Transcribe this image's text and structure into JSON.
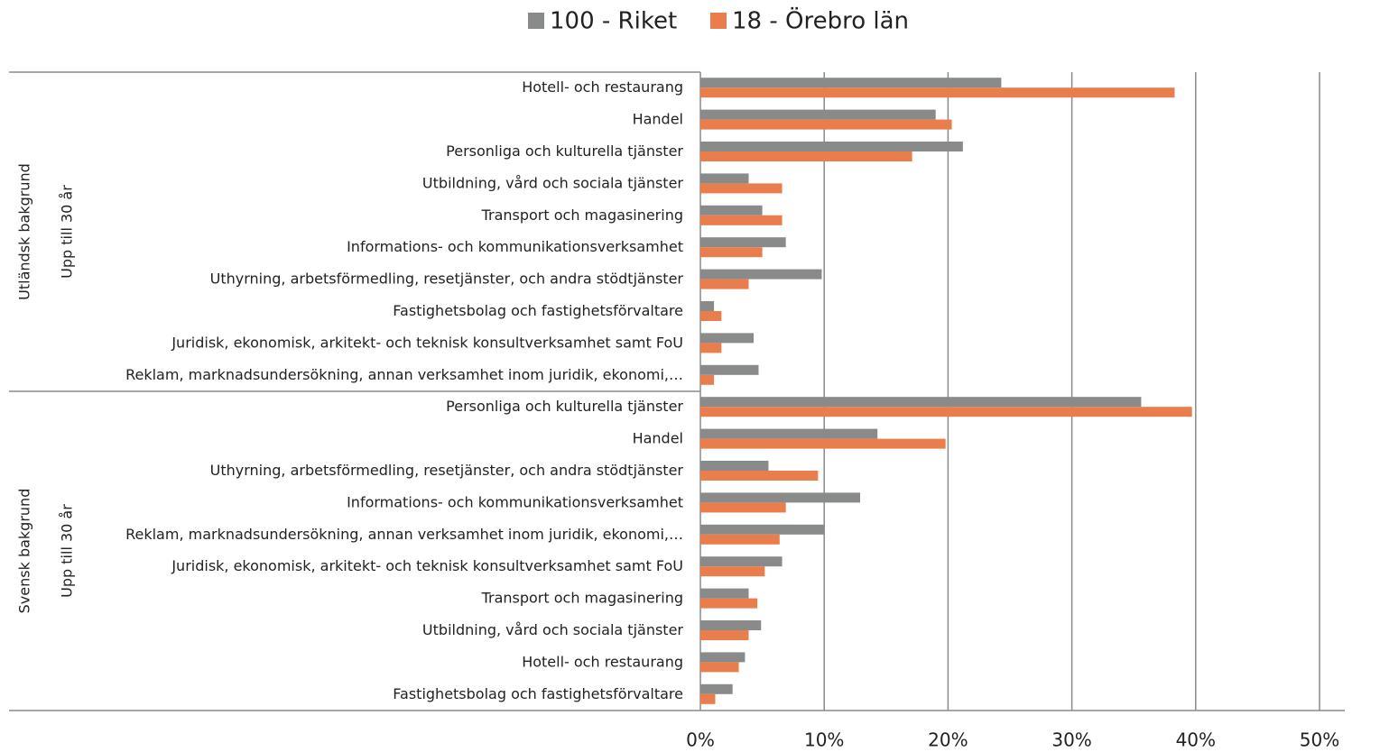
{
  "chart_data": {
    "type": "bar",
    "orientation": "horizontal",
    "groups": [
      {
        "name": "Utländsk bakgrund",
        "subgroup": "Upp till 30 år",
        "categories": [
          "Hotell- och restaurang",
          "Handel",
          "Personliga och kulturella tjänster",
          "Utbildning, vård och sociala tjänster",
          "Transport och magasinering",
          "Informations- och kommunikationsverksamhet",
          "Uthyrning, arbetsförmedling, resetjänster, och andra stödtjänster",
          "Fastighetsbolag och fastighetsförvaltare",
          "Juridisk, ekonomisk, arkitekt- och teknisk konsultverksamhet samt FoU",
          "Reklam, marknadsundersökning, annan verksamhet inom juridik, ekonomi,…"
        ]
      },
      {
        "name": "Svensk bakgrund",
        "subgroup": "Upp till 30 år",
        "categories": [
          "Personliga och kulturella tjänster",
          "Handel",
          "Uthyrning, arbetsförmedling, resetjänster, och andra stödtjänster",
          "Informations- och kommunikationsverksamhet",
          "Reklam, marknadsundersökning, annan verksamhet inom juridik, ekonomi,…",
          "Juridisk, ekonomisk, arkitekt- och teknisk konsultverksamhet samt FoU",
          "Transport och magasinering",
          "Utbildning, vård och sociala tjänster",
          "Hotell- och restaurang",
          "Fastighetsbolag och fastighetsförvaltare"
        ]
      }
    ],
    "series": [
      {
        "name": "100 - Riket",
        "color": "#898b8a",
        "values": [
          24.3,
          19.0,
          21.2,
          3.9,
          5.0,
          6.9,
          9.8,
          1.1,
          4.3,
          4.7,
          35.6,
          14.3,
          5.5,
          12.9,
          10.0,
          6.6,
          3.9,
          4.9,
          3.6,
          2.6
        ]
      },
      {
        "name": "18 - Örebro län",
        "color": "#ea7d4c",
        "values": [
          38.3,
          20.3,
          17.1,
          6.6,
          6.6,
          5.0,
          3.9,
          1.7,
          1.7,
          1.1,
          39.7,
          19.8,
          9.5,
          6.9,
          6.4,
          5.2,
          4.6,
          3.9,
          3.1,
          1.2
        ]
      }
    ],
    "xlim": [
      0,
      50
    ],
    "xticks": [
      {
        "value": 0,
        "label": "0%"
      },
      {
        "value": 10,
        "label": "10%"
      },
      {
        "value": 20,
        "label": "20%"
      },
      {
        "value": 30,
        "label": "30%"
      },
      {
        "value": 40,
        "label": "40%"
      },
      {
        "value": 50,
        "label": "50%"
      }
    ],
    "grid": true,
    "legend": "top"
  }
}
